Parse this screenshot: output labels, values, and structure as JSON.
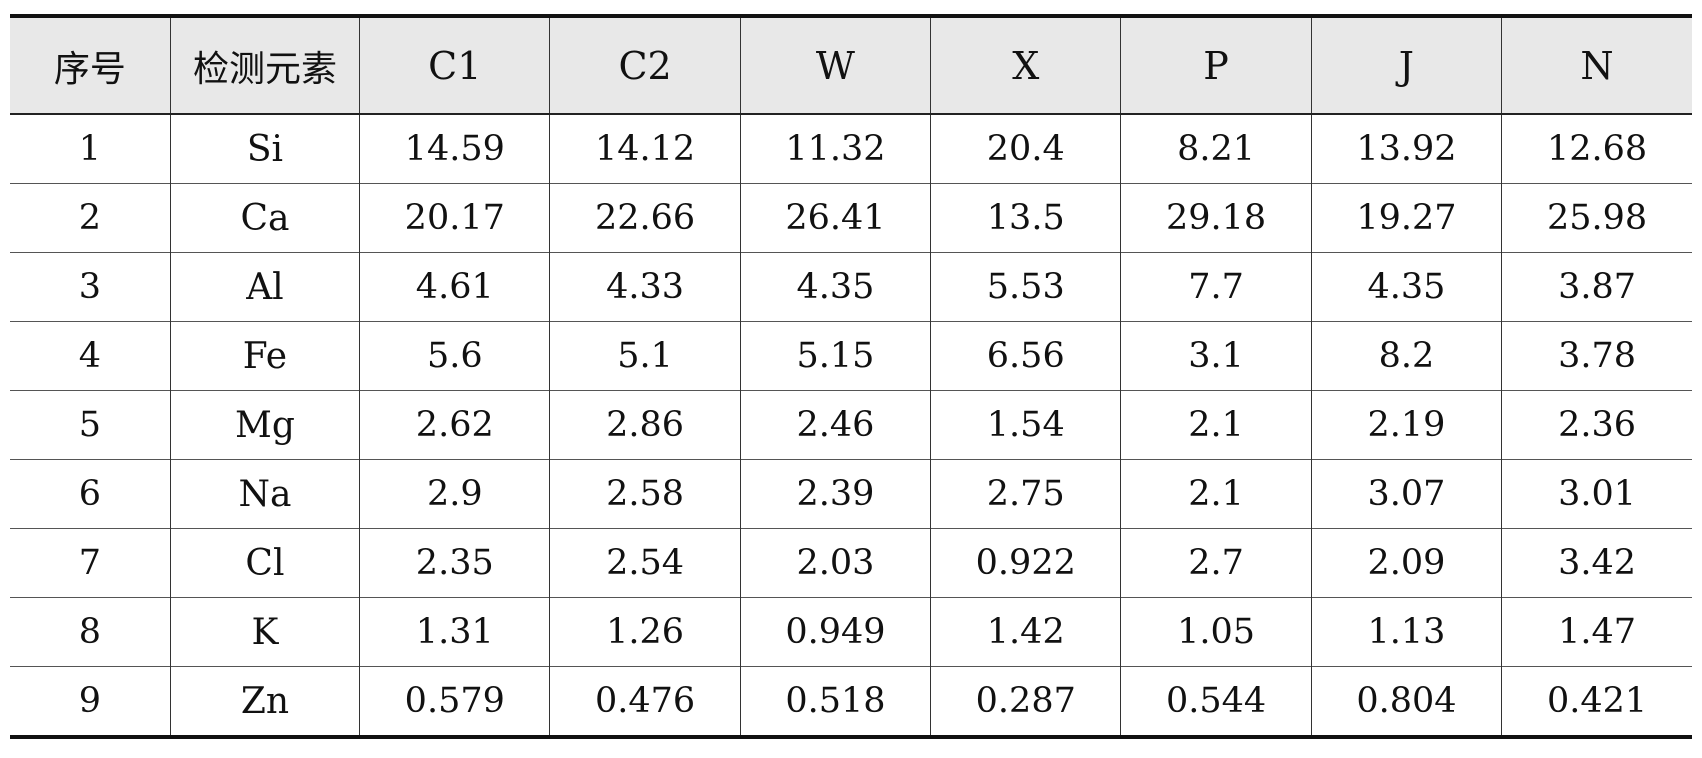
{
  "table": {
    "headers": [
      "序号",
      "检测元素",
      "C1",
      "C2",
      "W",
      "X",
      "P",
      "J",
      "N"
    ],
    "rows": [
      [
        "1",
        "Si",
        "14.59",
        "14.12",
        "11.32",
        "20.4",
        "8.21",
        "13.92",
        "12.68"
      ],
      [
        "2",
        "Ca",
        "20.17",
        "22.66",
        "26.41",
        "13.5",
        "29.18",
        "19.27",
        "25.98"
      ],
      [
        "3",
        "Al",
        "4.61",
        "4.33",
        "4.35",
        "5.53",
        "7.7",
        "4.35",
        "3.87"
      ],
      [
        "4",
        "Fe",
        "5.6",
        "5.1",
        "5.15",
        "6.56",
        "3.1",
        "8.2",
        "3.78"
      ],
      [
        "5",
        "Mg",
        "2.62",
        "2.86",
        "2.46",
        "1.54",
        "2.1",
        "2.19",
        "2.36"
      ],
      [
        "6",
        "Na",
        "2.9",
        "2.58",
        "2.39",
        "2.75",
        "2.1",
        "3.07",
        "3.01"
      ],
      [
        "7",
        "Cl",
        "2.35",
        "2.54",
        "2.03",
        "0.922",
        "2.7",
        "2.09",
        "3.42"
      ],
      [
        "8",
        "K",
        "1.31",
        "1.26",
        "0.949",
        "1.42",
        "1.05",
        "1.13",
        "1.47"
      ],
      [
        "9",
        "Zn",
        "0.579",
        "0.476",
        "0.518",
        "0.287",
        "0.544",
        "0.804",
        "0.421"
      ]
    ]
  }
}
